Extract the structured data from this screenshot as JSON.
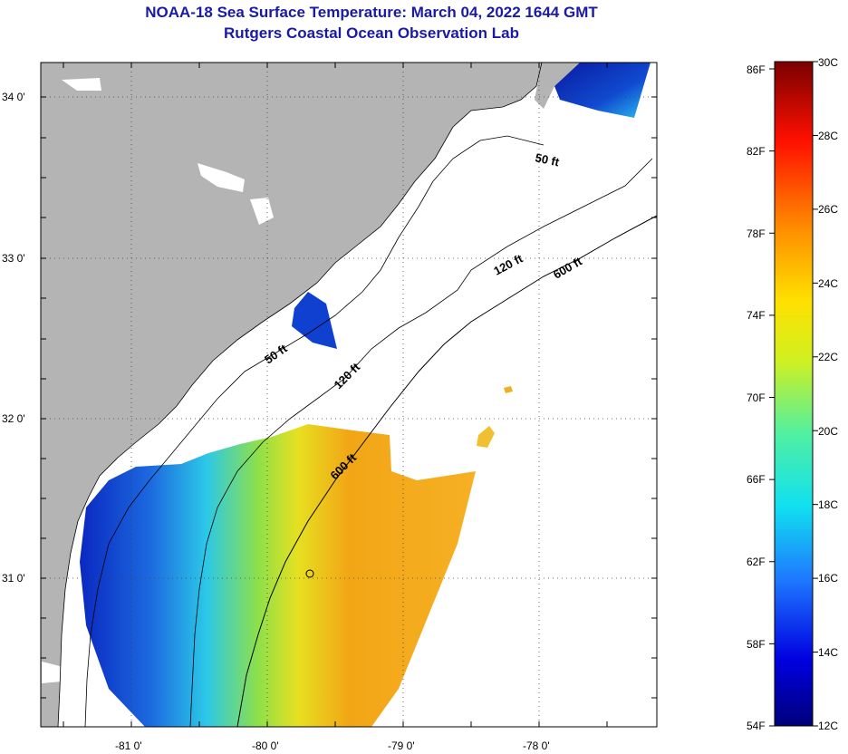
{
  "header": {
    "title": "NOAA-18 Sea Surface Temperature:  March 04, 2022 1644 GMT",
    "subtitle": "Rutgers Coastal Ocean Observation Lab"
  },
  "map": {
    "lat_labels": [
      "34 0'",
      "33 0'",
      "32 0'",
      "31 0'"
    ],
    "lon_labels": [
      "-81 0'",
      "-80 0'",
      "-79 0'",
      "-78 0'"
    ],
    "lon_range": [
      -81.7,
      -77.1
    ],
    "lat_range": [
      30.2,
      34.2
    ],
    "contour_labels": [
      "50 ft",
      "120 ft",
      "600 ft",
      "50 ft",
      "120 ft",
      "600 ft"
    ],
    "colors": {
      "land": "#b4b4b4",
      "cloud": "#ffffff",
      "cold": "#0a30c8",
      "mid": "#7fe04a",
      "warm": "#f2a010"
    }
  },
  "colorbar": {
    "fahrenheit_labels": [
      "86F",
      "82F",
      "78F",
      "74F",
      "70F",
      "66F",
      "62F",
      "58F",
      "54F"
    ],
    "celsius_labels": [
      "30C",
      "28C",
      "26C",
      "24C",
      "22C",
      "20C",
      "18C",
      "16C",
      "14C",
      "12C"
    ]
  }
}
